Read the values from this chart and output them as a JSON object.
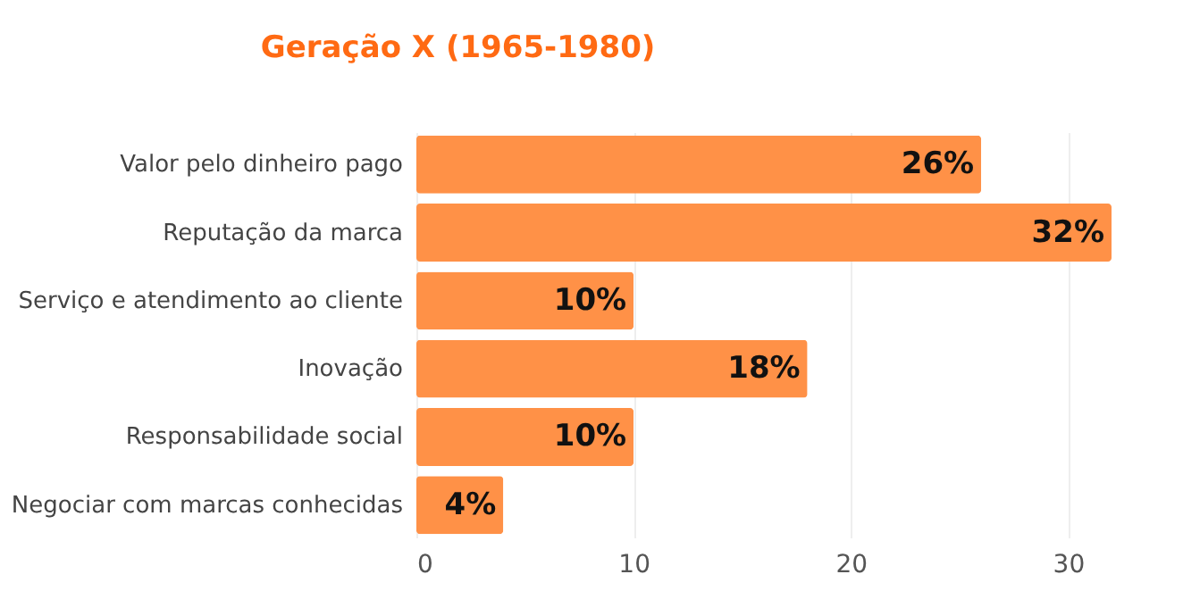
{
  "chart_data": {
    "type": "bar",
    "orientation": "horizontal",
    "title": "Geração X (1965-1980)",
    "categories": [
      "Valor pelo dinheiro pago",
      "Reputação da marca",
      "Serviço e atendimento ao cliente",
      "Inovação",
      "Responsabilidade social",
      "Negociar com marcas conhecidas"
    ],
    "values": [
      26,
      32,
      10,
      18,
      10,
      4
    ],
    "value_labels": [
      "26%",
      "32%",
      "10%",
      "18%",
      "10%",
      "4%"
    ],
    "color": "#ff9147",
    "xlim": [
      0,
      32
    ],
    "xticks": [
      0,
      10,
      20,
      30
    ],
    "grid": "x"
  }
}
